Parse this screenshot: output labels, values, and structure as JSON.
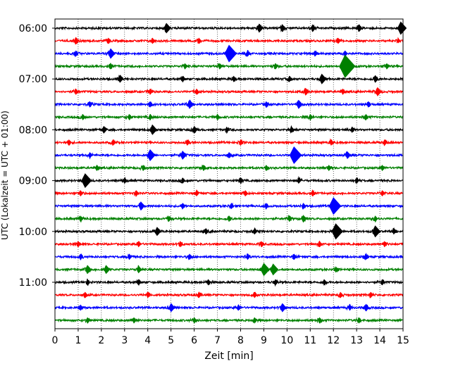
{
  "chart_data": {
    "type": "line",
    "title": "",
    "xlabel": "Zeit  [min]",
    "ylabel": "UTC (Lokalzeit = UTC + 01:00)",
    "xlim": [
      0,
      15
    ],
    "x_ticks": [
      "0",
      "1",
      "2",
      "3",
      "4",
      "5",
      "6",
      "7",
      "8",
      "9",
      "10",
      "11",
      "12",
      "13",
      "14",
      "15"
    ],
    "y_tick_labels": [
      "06:00",
      "07:00",
      "08:00",
      "09:00",
      "10:00",
      "11:00"
    ],
    "grid": "vertical dotted lines at each minute",
    "legend": "none",
    "trace_interval_min": 15,
    "trace_colors": [
      "#000000",
      "#ff0000",
      "#0000ff",
      "#008000"
    ],
    "traces": [
      {
        "start": "06:00",
        "color": "#000000",
        "events": [
          [
            4.8,
            7
          ],
          [
            8.8,
            6
          ],
          [
            9.8,
            5
          ],
          [
            11.1,
            5
          ],
          [
            13.1,
            5
          ],
          [
            14.9,
            9
          ]
        ]
      },
      {
        "start": "06:15",
        "color": "#ff0000",
        "events": [
          [
            0.9,
            5
          ],
          [
            2.3,
            4
          ],
          [
            4.2,
            4
          ],
          [
            6.2,
            4
          ],
          [
            12.2,
            4
          ],
          [
            14.8,
            3
          ]
        ]
      },
      {
        "start": "06:30",
        "color": "#0000ff",
        "events": [
          [
            0.9,
            4
          ],
          [
            2.4,
            7
          ],
          [
            7.5,
            12
          ],
          [
            8.3,
            4
          ],
          [
            11.2,
            4
          ],
          [
            12.5,
            4
          ]
        ]
      },
      {
        "start": "06:45",
        "color": "#008000",
        "events": [
          [
            2.4,
            4
          ],
          [
            5.6,
            4
          ],
          [
            7.1,
            4
          ],
          [
            9.5,
            4
          ],
          [
            12.5,
            16
          ],
          [
            14.3,
            4
          ]
        ]
      },
      {
        "start": "07:00",
        "color": "#000000",
        "events": [
          [
            2.8,
            5
          ],
          [
            5.5,
            4
          ],
          [
            7.7,
            4
          ],
          [
            10.1,
            4
          ],
          [
            11.5,
            7
          ],
          [
            13.8,
            5
          ]
        ]
      },
      {
        "start": "07:15",
        "color": "#ff0000",
        "events": [
          [
            0.9,
            4
          ],
          [
            4.1,
            4
          ],
          [
            6.1,
            4
          ],
          [
            10.8,
            5
          ],
          [
            12.4,
            4
          ],
          [
            13.9,
            6
          ]
        ]
      },
      {
        "start": "07:30",
        "color": "#0000ff",
        "events": [
          [
            1.5,
            4
          ],
          [
            4.1,
            4
          ],
          [
            5.8,
            6
          ],
          [
            9.1,
            4
          ],
          [
            10.5,
            6
          ],
          [
            13.5,
            4
          ]
        ]
      },
      {
        "start": "07:45",
        "color": "#008000",
        "events": [
          [
            1.2,
            4
          ],
          [
            3.2,
            4
          ],
          [
            4.1,
            4
          ],
          [
            7.0,
            4
          ],
          [
            11.0,
            4
          ],
          [
            13.4,
            4
          ]
        ]
      },
      {
        "start": "08:00",
        "color": "#000000",
        "events": [
          [
            2.1,
            5
          ],
          [
            4.2,
            7
          ],
          [
            6.0,
            5
          ],
          [
            7.4,
            4
          ],
          [
            10.2,
            4
          ],
          [
            12.8,
            4
          ]
        ]
      },
      {
        "start": "08:15",
        "color": "#ff0000",
        "events": [
          [
            0.6,
            4
          ],
          [
            2.5,
            4
          ],
          [
            5.7,
            4
          ],
          [
            8.0,
            4
          ],
          [
            11.9,
            4
          ],
          [
            14.2,
            4
          ]
        ]
      },
      {
        "start": "08:30",
        "color": "#0000ff",
        "events": [
          [
            1.5,
            4
          ],
          [
            4.1,
            8
          ],
          [
            5.5,
            6
          ],
          [
            7.5,
            4
          ],
          [
            10.3,
            12
          ],
          [
            12.6,
            5
          ]
        ]
      },
      {
        "start": "08:45",
        "color": "#008000",
        "events": [
          [
            1.8,
            4
          ],
          [
            3.8,
            4
          ],
          [
            6.4,
            4
          ],
          [
            9.1,
            4
          ],
          [
            11.8,
            4
          ],
          [
            14.1,
            4
          ]
        ]
      },
      {
        "start": "09:00",
        "color": "#000000",
        "events": [
          [
            1.3,
            10
          ],
          [
            3.0,
            4
          ],
          [
            5.5,
            4
          ],
          [
            8.0,
            4
          ],
          [
            10.5,
            4
          ],
          [
            13.0,
            4
          ]
        ]
      },
      {
        "start": "09:15",
        "color": "#ff0000",
        "events": [
          [
            1.1,
            4
          ],
          [
            3.5,
            4
          ],
          [
            6.1,
            4
          ],
          [
            8.2,
            4
          ],
          [
            11.1,
            4
          ],
          [
            14.1,
            4
          ]
        ]
      },
      {
        "start": "09:30",
        "color": "#0000ff",
        "events": [
          [
            3.7,
            6
          ],
          [
            5.5,
            4
          ],
          [
            7.6,
            4
          ],
          [
            9.1,
            4
          ],
          [
            10.7,
            4
          ],
          [
            12.0,
            12
          ]
        ]
      },
      {
        "start": "09:45",
        "color": "#008000",
        "events": [
          [
            1.1,
            4
          ],
          [
            4.9,
            4
          ],
          [
            7.5,
            4
          ],
          [
            10.1,
            4
          ],
          [
            10.7,
            5
          ],
          [
            13.8,
            4
          ]
        ]
      },
      {
        "start": "10:00",
        "color": "#000000",
        "events": [
          [
            4.4,
            6
          ],
          [
            6.5,
            4
          ],
          [
            8.6,
            4
          ],
          [
            12.1,
            11
          ],
          [
            13.8,
            8
          ],
          [
            14.6,
            4
          ]
        ]
      },
      {
        "start": "10:15",
        "color": "#ff0000",
        "events": [
          [
            1.0,
            4
          ],
          [
            3.6,
            4
          ],
          [
            5.4,
            4
          ],
          [
            8.9,
            4
          ],
          [
            11.4,
            4
          ],
          [
            14.2,
            4
          ]
        ]
      },
      {
        "start": "10:30",
        "color": "#0000ff",
        "events": [
          [
            1.1,
            4
          ],
          [
            3.2,
            4
          ],
          [
            5.8,
            4
          ],
          [
            8.3,
            4
          ],
          [
            10.3,
            4
          ],
          [
            13.4,
            4
          ]
        ]
      },
      {
        "start": "10:45",
        "color": "#008000",
        "events": [
          [
            1.4,
            6
          ],
          [
            2.2,
            6
          ],
          [
            3.6,
            5
          ],
          [
            9.0,
            9
          ],
          [
            9.4,
            8
          ],
          [
            12.1,
            4
          ]
        ]
      },
      {
        "start": "11:00",
        "color": "#000000",
        "events": [
          [
            1.4,
            4
          ],
          [
            3.6,
            4
          ],
          [
            6.6,
            4
          ],
          [
            9.5,
            4
          ],
          [
            11.6,
            4
          ],
          [
            14.1,
            4
          ]
        ]
      },
      {
        "start": "11:15",
        "color": "#ff0000",
        "events": [
          [
            1.3,
            4
          ],
          [
            4.0,
            4
          ],
          [
            6.2,
            4
          ],
          [
            8.6,
            4
          ],
          [
            12.3,
            4
          ],
          [
            13.6,
            4
          ]
        ]
      },
      {
        "start": "11:30",
        "color": "#0000ff",
        "events": [
          [
            1.1,
            4
          ],
          [
            5.0,
            6
          ],
          [
            7.9,
            4
          ],
          [
            9.8,
            6
          ],
          [
            12.7,
            4
          ],
          [
            13.4,
            5
          ]
        ]
      },
      {
        "start": "11:45",
        "color": "#008000",
        "events": [
          [
            1.4,
            4
          ],
          [
            3.4,
            4
          ],
          [
            6.0,
            4
          ],
          [
            8.6,
            4
          ],
          [
            11.4,
            4
          ],
          [
            13.1,
            4
          ]
        ]
      }
    ]
  }
}
